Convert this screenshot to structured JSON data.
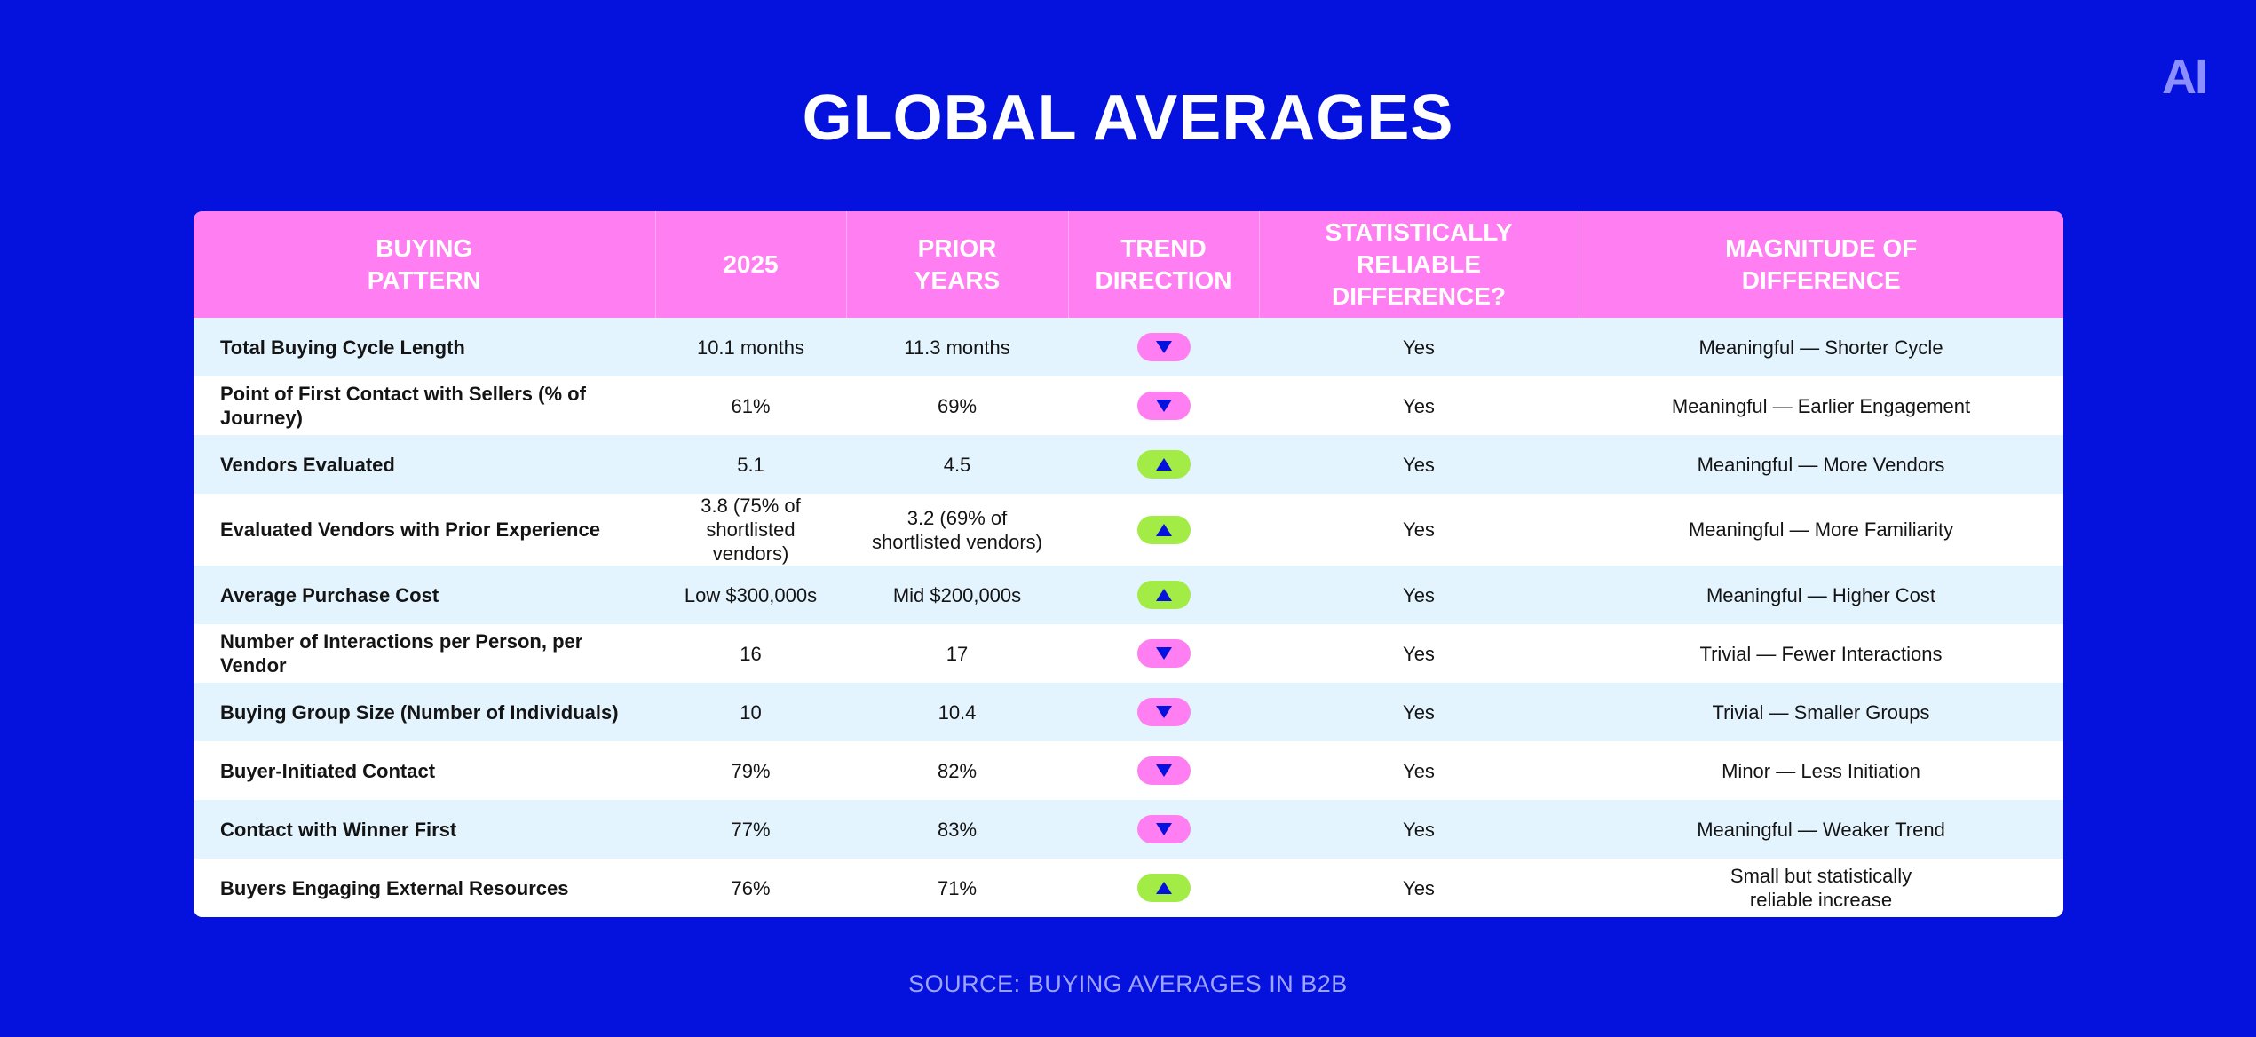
{
  "logo": "AI",
  "title": "GLOBAL AVERAGES",
  "source": "SOURCE: BUYING AVERAGES IN B2B",
  "colors": {
    "background": "#0512DE",
    "header": "#FF7FF2",
    "trend_down": "#FF7FF2",
    "trend_up": "#A2EC45",
    "row_alt": "#E4F4FF"
  },
  "chart_data": {
    "type": "table",
    "columns": [
      "BUYING\nPATTERN",
      "2025",
      "PRIOR\nYEARS",
      "TREND\nDIRECTION",
      "STATISTICALLY\nRELIABLE DIFFERENCE?",
      "MAGNITUDE OF\nDIFFERENCE"
    ],
    "rows": [
      {
        "pattern": "Total Buying Cycle Length",
        "y2025": "10.1 months",
        "prior": "11.3 months",
        "trend": "down",
        "reliable": "Yes",
        "magnitude": "Meaningful — Shorter Cycle"
      },
      {
        "pattern": "Point of First Contact with Sellers (% of Journey)",
        "y2025": "61%",
        "prior": "69%",
        "trend": "down",
        "reliable": "Yes",
        "magnitude": "Meaningful — Earlier Engagement"
      },
      {
        "pattern": "Vendors Evaluated",
        "y2025": "5.1",
        "prior": "4.5",
        "trend": "up",
        "reliable": "Yes",
        "magnitude": "Meaningful — More Vendors"
      },
      {
        "pattern": "Evaluated Vendors with Prior Experience",
        "y2025": "3.8 (75% of\nshortlisted vendors)",
        "prior": "3.2 (69% of\nshortlisted vendors)",
        "trend": "up",
        "reliable": "Yes",
        "magnitude": "Meaningful — More Familiarity"
      },
      {
        "pattern": "Average Purchase Cost",
        "y2025": "Low $300,000s",
        "prior": "Mid $200,000s",
        "trend": "up",
        "reliable": "Yes",
        "magnitude": "Meaningful — Higher Cost"
      },
      {
        "pattern": "Number of Interactions per Person, per Vendor",
        "y2025": "16",
        "prior": "17",
        "trend": "down",
        "reliable": "Yes",
        "magnitude": "Trivial — Fewer Interactions"
      },
      {
        "pattern": "Buying Group Size (Number of Individuals)",
        "y2025": "10",
        "prior": "10.4",
        "trend": "down",
        "reliable": "Yes",
        "magnitude": "Trivial — Smaller Groups"
      },
      {
        "pattern": "Buyer-Initiated Contact",
        "y2025": "79%",
        "prior": "82%",
        "trend": "down",
        "reliable": "Yes",
        "magnitude": "Minor — Less Initiation"
      },
      {
        "pattern": "Contact with Winner First",
        "y2025": "77%",
        "prior": "83%",
        "trend": "down",
        "reliable": "Yes",
        "magnitude": "Meaningful — Weaker Trend"
      },
      {
        "pattern": "Buyers Engaging External Resources",
        "y2025": "76%",
        "prior": "71%",
        "trend": "up",
        "reliable": "Yes",
        "magnitude": "Small but statistically\nreliable increase"
      }
    ]
  }
}
